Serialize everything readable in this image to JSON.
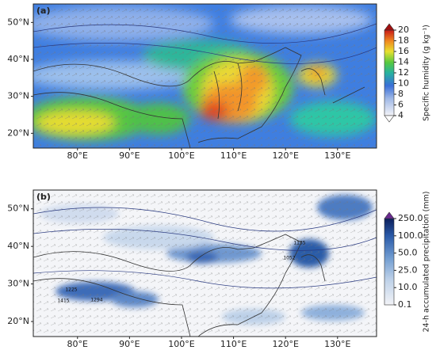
{
  "panels": [
    {
      "label": "(a)",
      "lon_range": [
        71.5,
        137.5
      ],
      "lat_range": [
        16,
        55
      ],
      "lat_ticks": [
        {
          "value": 20,
          "label": "20°N"
        },
        {
          "value": 30,
          "label": "30°N"
        },
        {
          "value": 40,
          "label": "40°N"
        },
        {
          "value": 50,
          "label": "50°N"
        }
      ],
      "lon_ticks": [
        {
          "value": 80,
          "label": "80°E"
        },
        {
          "value": 90,
          "label": "90°E"
        },
        {
          "value": 100,
          "label": "100°E"
        },
        {
          "value": 110,
          "label": "110°E"
        },
        {
          "value": 120,
          "label": "120°E"
        },
        {
          "value": 130,
          "label": "130°E"
        }
      ],
      "colorbar": {
        "title": "Specific humidity (g kg⁻¹)",
        "ticks": [
          4,
          6,
          8,
          10,
          12,
          14,
          16,
          18,
          20
        ]
      },
      "annotations": []
    },
    {
      "label": "(b)",
      "lon_range": [
        71.5,
        137.5
      ],
      "lat_range": [
        16,
        55
      ],
      "lat_ticks": [
        {
          "value": 20,
          "label": "20°N"
        },
        {
          "value": 30,
          "label": "30°N"
        },
        {
          "value": 40,
          "label": "40°N"
        },
        {
          "value": 50,
          "label": "50°N"
        }
      ],
      "lon_ticks": [
        {
          "value": 80,
          "label": "80°E"
        },
        {
          "value": 90,
          "label": "90°E"
        },
        {
          "value": 100,
          "label": "100°E"
        },
        {
          "value": 110,
          "label": "110°E"
        },
        {
          "value": 120,
          "label": "120°E"
        },
        {
          "value": 130,
          "label": "130°E"
        }
      ],
      "colorbar": {
        "title": "24-h accumulated precipitation (mm)",
        "ticks": [
          {
            "value": 0.1,
            "label": "0.1"
          },
          {
            "value": 10,
            "label": "10.0"
          },
          {
            "value": 25,
            "label": "25.0"
          },
          {
            "value": 50,
            "label": "50.0"
          },
          {
            "value": 100,
            "label": "100.0"
          },
          {
            "value": 250,
            "label": "250.0"
          }
        ]
      },
      "annotations": [
        "1135",
        "1052",
        "1225",
        "1415",
        "1294"
      ]
    }
  ]
}
